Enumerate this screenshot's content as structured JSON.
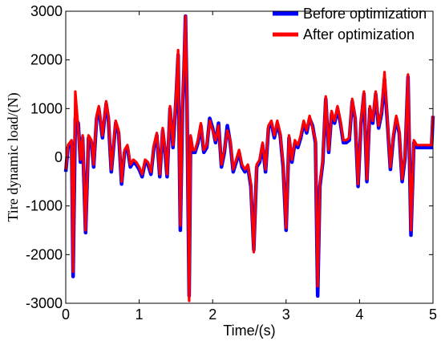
{
  "chart_data": {
    "type": "line",
    "title": "",
    "xlabel": "Time/(s)",
    "ylabel": "Tire dynamic load/(N)",
    "xlim": [
      0,
      5
    ],
    "ylim": [
      -3000,
      3000
    ],
    "xticks": [
      0,
      1,
      2,
      3,
      4,
      5
    ],
    "yticks": [
      -3000,
      -2000,
      -1000,
      0,
      1000,
      2000,
      3000
    ],
    "xtick_labels": [
      "0",
      "1",
      "2",
      "3",
      "4",
      "5"
    ],
    "ytick_labels": [
      "-3000",
      "-2000",
      "-1000",
      "0",
      "1000",
      "2000",
      "3000"
    ],
    "grid": false,
    "legend_position": "top-right",
    "series": [
      {
        "name": "Before optimization",
        "color": "#0000ff",
        "x": [
          0,
          0.03,
          0.08,
          0.1,
          0.13,
          0.17,
          0.2,
          0.23,
          0.27,
          0.31,
          0.35,
          0.38,
          0.42,
          0.45,
          0.5,
          0.55,
          0.58,
          0.62,
          0.68,
          0.72,
          0.76,
          0.8,
          0.84,
          0.88,
          0.92,
          0.96,
          1.0,
          1.04,
          1.08,
          1.12,
          1.16,
          1.2,
          1.24,
          1.28,
          1.32,
          1.35,
          1.38,
          1.42,
          1.46,
          1.5,
          1.53,
          1.56,
          1.59,
          1.61,
          1.63,
          1.65,
          1.68,
          1.7,
          1.73,
          1.76,
          1.8,
          1.84,
          1.88,
          1.92,
          1.96,
          2.0,
          2.04,
          2.08,
          2.12,
          2.16,
          2.2,
          2.24,
          2.28,
          2.32,
          2.36,
          2.4,
          2.44,
          2.48,
          2.52,
          2.56,
          2.6,
          2.64,
          2.68,
          2.72,
          2.76,
          2.8,
          2.84,
          2.88,
          2.92,
          2.96,
          3.0,
          3.04,
          3.08,
          3.12,
          3.16,
          3.2,
          3.24,
          3.28,
          3.32,
          3.36,
          3.4,
          3.43,
          3.46,
          3.5,
          3.54,
          3.58,
          3.62,
          3.66,
          3.7,
          3.74,
          3.78,
          3.82,
          3.86,
          3.9,
          3.94,
          3.98,
          4.02,
          4.06,
          4.1,
          4.14,
          4.18,
          4.22,
          4.26,
          4.3,
          4.34,
          4.38,
          4.42,
          4.46,
          4.5,
          4.54,
          4.58,
          4.62,
          4.66,
          4.7,
          4.74,
          4.78,
          4.82,
          4.86,
          4.9,
          4.94,
          4.98,
          5.0
        ],
        "y": [
          -300,
          200,
          300,
          -2450,
          800,
          700,
          -100,
          400,
          -1550,
          400,
          300,
          -200,
          800,
          1000,
          400,
          1100,
          800,
          -300,
          700,
          500,
          -550,
          100,
          200,
          -200,
          -100,
          -150,
          -250,
          -400,
          -100,
          -150,
          -350,
          200,
          450,
          -400,
          550,
          150,
          -400,
          1000,
          200,
          1150,
          2100,
          -1500,
          1000,
          1800,
          2900,
          1200,
          -2850,
          400,
          100,
          100,
          300,
          650,
          100,
          200,
          800,
          600,
          300,
          700,
          -200,
          100,
          650,
          300,
          -300,
          -100,
          100,
          -200,
          -300,
          -200,
          -600,
          -1900,
          -200,
          -100,
          250,
          -300,
          600,
          700,
          400,
          700,
          450,
          -200,
          -1500,
          400,
          -100,
          300,
          200,
          400,
          700,
          500,
          800,
          650,
          300,
          -2850,
          -600,
          -100,
          1200,
          100,
          900,
          700,
          1000,
          700,
          300,
          300,
          350,
          1150,
          800,
          -600,
          700,
          1300,
          -500,
          1000,
          700,
          1300,
          600,
          900,
          1600,
          700,
          -250,
          400,
          800,
          500,
          -500,
          0,
          1650,
          -1600,
          300,
          200,
          200,
          200,
          200,
          200,
          200,
          850
        ]
      },
      {
        "name": "After optimization",
        "color": "#ff0000",
        "x": [
          0,
          0.03,
          0.08,
          0.1,
          0.13,
          0.17,
          0.2,
          0.23,
          0.27,
          0.31,
          0.35,
          0.38,
          0.42,
          0.45,
          0.5,
          0.55,
          0.58,
          0.62,
          0.68,
          0.72,
          0.76,
          0.8,
          0.84,
          0.88,
          0.92,
          0.96,
          1.0,
          1.04,
          1.08,
          1.12,
          1.16,
          1.2,
          1.24,
          1.28,
          1.32,
          1.35,
          1.38,
          1.42,
          1.46,
          1.5,
          1.53,
          1.56,
          1.59,
          1.61,
          1.63,
          1.65,
          1.68,
          1.7,
          1.73,
          1.76,
          1.8,
          1.84,
          1.88,
          1.92,
          1.96,
          2.0,
          2.04,
          2.08,
          2.12,
          2.16,
          2.2,
          2.24,
          2.28,
          2.32,
          2.36,
          2.4,
          2.44,
          2.48,
          2.52,
          2.56,
          2.6,
          2.64,
          2.68,
          2.72,
          2.76,
          2.8,
          2.84,
          2.88,
          2.92,
          2.96,
          3.0,
          3.04,
          3.08,
          3.12,
          3.16,
          3.2,
          3.24,
          3.28,
          3.32,
          3.36,
          3.4,
          3.43,
          3.46,
          3.5,
          3.54,
          3.58,
          3.62,
          3.66,
          3.7,
          3.74,
          3.78,
          3.82,
          3.86,
          3.9,
          3.94,
          3.98,
          4.02,
          4.06,
          4.1,
          4.14,
          4.18,
          4.22,
          4.26,
          4.3,
          4.34,
          4.38,
          4.42,
          4.46,
          4.5,
          4.54,
          4.58,
          4.62,
          4.66,
          4.7,
          4.74,
          4.78,
          4.82,
          4.86,
          4.9,
          4.94,
          4.98,
          5.0
        ],
        "y": [
          -250,
          250,
          350,
          -2350,
          1350,
          600,
          -50,
          450,
          -1500,
          450,
          350,
          -150,
          850,
          1050,
          450,
          1150,
          850,
          -250,
          750,
          550,
          -500,
          150,
          250,
          -150,
          -50,
          -100,
          -200,
          -350,
          -50,
          -100,
          -300,
          250,
          500,
          -350,
          600,
          200,
          -350,
          1050,
          250,
          1200,
          2200,
          -1400,
          1100,
          1900,
          2900,
          1300,
          -2950,
          450,
          150,
          150,
          350,
          700,
          150,
          250,
          750,
          550,
          350,
          650,
          -150,
          150,
          550,
          350,
          -250,
          -50,
          150,
          -150,
          -250,
          -150,
          -550,
          -1950,
          -150,
          -50,
          300,
          -250,
          650,
          750,
          450,
          750,
          500,
          -150,
          -1450,
          450,
          -50,
          350,
          250,
          450,
          750,
          550,
          850,
          600,
          350,
          -2650,
          -550,
          -50,
          1250,
          150,
          950,
          750,
          1050,
          750,
          350,
          350,
          400,
          1200,
          850,
          -550,
          750,
          1350,
          -450,
          1050,
          750,
          1350,
          650,
          950,
          1750,
          750,
          -200,
          450,
          850,
          550,
          -450,
          50,
          1700,
          -1500,
          350,
          250,
          250,
          250,
          250,
          250,
          250,
          850
        ]
      }
    ]
  }
}
